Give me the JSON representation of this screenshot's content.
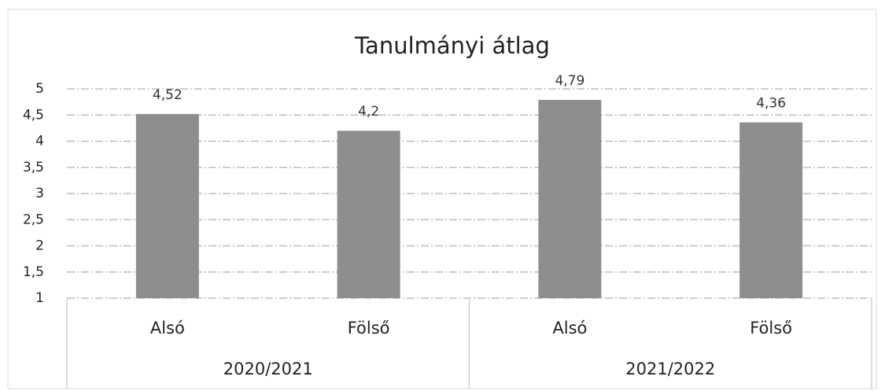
{
  "chart_data": {
    "type": "bar",
    "title": "Tanulmányi átlag",
    "categories": [
      "Alsó",
      "Fölső",
      "Alsó",
      "Fölső"
    ],
    "groups": [
      "2020/2021",
      "2021/2022"
    ],
    "values": [
      4.52,
      4.2,
      4.79,
      4.36
    ],
    "value_labels": [
      "4,52",
      "4,2",
      "4,79",
      "4,36"
    ],
    "color": "#8e8e8e",
    "ylim": [
      1,
      5
    ],
    "yticks": [
      1,
      {
        "value": 1.5,
        "label": "1,5"
      },
      2,
      {
        "value": 2.5,
        "label": "2,5"
      },
      3,
      {
        "value": 3.5,
        "label": "3,5"
      },
      4,
      {
        "value": 4.5,
        "label": "4,5"
      },
      5
    ],
    "grid": true
  }
}
